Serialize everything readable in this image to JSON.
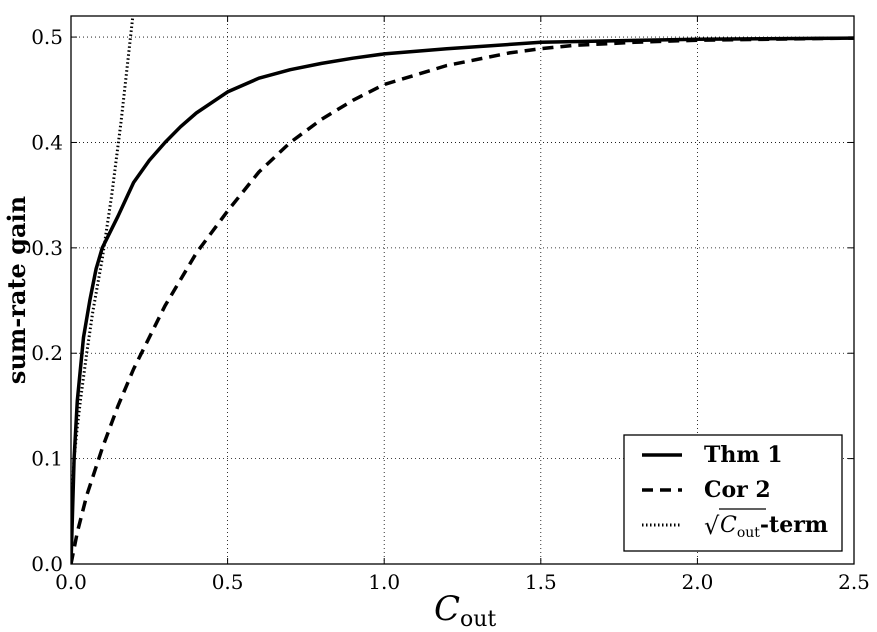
{
  "chart_data": {
    "type": "line",
    "xlabel": "C",
    "xlabel_sub": "out",
    "ylabel": "sum-rate gain",
    "xlim": [
      0.0,
      2.5
    ],
    "ylim": [
      0.0,
      0.52
    ],
    "xticks": [
      "0.0",
      "0.5",
      "1.0",
      "1.5",
      "2.0",
      "2.5"
    ],
    "xtick_values": [
      0.0,
      0.5,
      1.0,
      1.5,
      2.0,
      2.5
    ],
    "yticks": [
      "0.0",
      "0.1",
      "0.2",
      "0.3",
      "0.4",
      "0.5"
    ],
    "ytick_values": [
      0.0,
      0.1,
      0.2,
      0.3,
      0.4,
      0.5
    ],
    "grid": true,
    "legend_position": "bottom-right",
    "series": [
      {
        "name": "Thm 1",
        "style": "solid",
        "color": "#000000",
        "x": [
          0.0,
          0.01,
          0.02,
          0.04,
          0.06,
          0.08,
          0.1,
          0.15,
          0.2,
          0.25,
          0.3,
          0.35,
          0.4,
          0.5,
          0.6,
          0.7,
          0.8,
          0.9,
          1.0,
          1.2,
          1.5,
          2.0,
          2.5
        ],
        "y": [
          0.0,
          0.1,
          0.155,
          0.215,
          0.25,
          0.28,
          0.3,
          0.33,
          0.362,
          0.383,
          0.4,
          0.415,
          0.428,
          0.448,
          0.461,
          0.469,
          0.475,
          0.48,
          0.484,
          0.489,
          0.495,
          0.498,
          0.499
        ]
      },
      {
        "name": "Cor 2",
        "style": "dashed",
        "color": "#000000",
        "x": [
          0.0,
          0.02,
          0.05,
          0.1,
          0.15,
          0.2,
          0.3,
          0.4,
          0.5,
          0.6,
          0.7,
          0.8,
          0.9,
          1.0,
          1.2,
          1.4,
          1.5,
          1.6,
          1.8,
          2.0,
          2.5
        ],
        "y": [
          0.0,
          0.03,
          0.065,
          0.11,
          0.15,
          0.185,
          0.245,
          0.295,
          0.335,
          0.372,
          0.4,
          0.422,
          0.44,
          0.455,
          0.473,
          0.485,
          0.489,
          0.492,
          0.495,
          0.497,
          0.499
        ]
      },
      {
        "name": "√C_out-term",
        "style": "dotted",
        "color": "#000000",
        "x": [
          0.0,
          0.0005,
          0.002,
          0.005,
          0.01,
          0.02,
          0.03,
          0.05,
          0.07,
          0.1,
          0.13,
          0.16,
          0.19,
          0.22
        ],
        "y": [
          0.0,
          0.025,
          0.05,
          0.075,
          0.1,
          0.13,
          0.155,
          0.2,
          0.24,
          0.29,
          0.35,
          0.42,
          0.5,
          0.58
        ]
      }
    ],
    "legend": [
      {
        "label": "Thm 1",
        "style": "solid"
      },
      {
        "label": "Cor 2",
        "style": "dashed"
      },
      {
        "label_sqrt_arg": "C",
        "label_sub": "out",
        "label_suffix": "-term",
        "style": "dotted"
      }
    ]
  }
}
